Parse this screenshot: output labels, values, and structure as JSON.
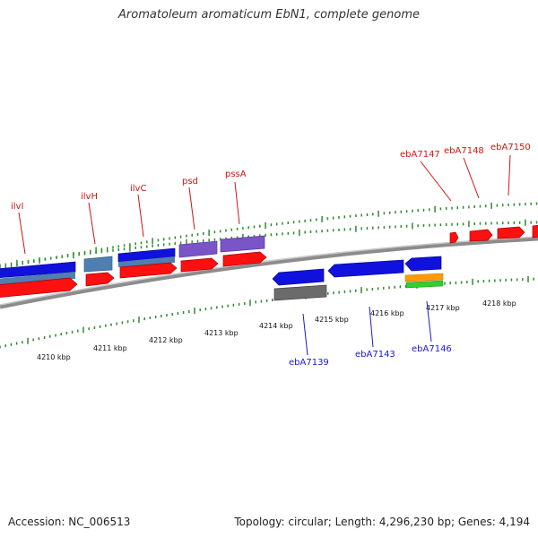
{
  "title": "Aromatoleum aromaticum EbN1, complete genome",
  "footer": {
    "accession": "Accession: NC_006513",
    "summary": "Topology: circular; Length: 4,296,230 bp; Genes: 4,194"
  },
  "ticks_outer": [
    "4210 kbp",
    "4211 kbp",
    "4212 kbp",
    "4213 kbp",
    "4214 kbp"
  ],
  "ticks_inner": [
    "4215 kbp",
    "4216 kbp",
    "4217 kbp",
    "4218 kbp"
  ],
  "labels_forward": [
    "ilvI",
    "ilvH",
    "ilvC",
    "psd",
    "pssA",
    "ebA7147",
    "ebA7148",
    "ebA7150"
  ],
  "labels_reverse": [
    "ebA7139",
    "ebA7143",
    "ebA7146"
  ],
  "colors": {
    "forward_label": "#d41414",
    "reverse_label": "#1a1acc",
    "cds_red": "#ff1010",
    "cds_blue": "#1111dd",
    "cds_steel": "#4e7fb0",
    "cds_purple": "#7a55c8",
    "cds_gray": "#6b6b6b",
    "cds_orange": "#ff9a00",
    "cds_green": "#33cc33",
    "backbone": "#8c8c8c",
    "tick": "#2f8a2f"
  }
}
